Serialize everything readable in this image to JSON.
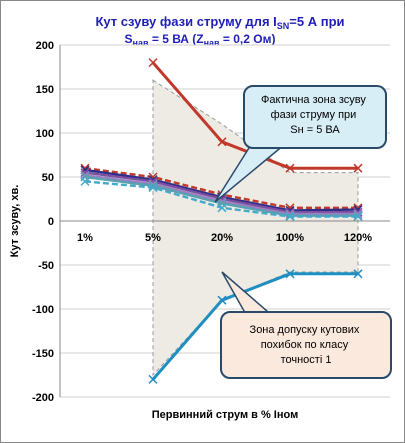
{
  "chart_data": {
    "type": "line",
    "title_line1": {
      "a": "Кут сзуву фази струму  для I",
      "sub": "SN",
      "b": "=5 А при"
    },
    "title_line2": {
      "a": "S",
      "sub1": "нав",
      "b": " = 5 ВА (Z",
      "sub2": "нав",
      "c": " = 0,2 Ом)"
    },
    "xlabel": "Первинний  струм в % Iном",
    "ylabel": "Кут зсуву, хв.",
    "categories": [
      "1%",
      "5%",
      "20%",
      "100%",
      "120%"
    ],
    "ylim": [
      -200,
      200
    ],
    "yticks": [
      -200,
      -150,
      -100,
      -50,
      0,
      50,
      100,
      150,
      200
    ],
    "grid": true,
    "series": [
      {
        "values": [
          null,
          180,
          90,
          60,
          60
        ],
        "color": "#c0392b"
      },
      {
        "values": [
          null,
          -180,
          -90,
          -60,
          -60
        ],
        "color": "#1f8fc1"
      },
      {
        "values": [
          60,
          50,
          30,
          15,
          15
        ],
        "color": "#c0392b"
      },
      {
        "values": [
          58,
          47,
          27,
          12,
          13
        ],
        "color": "#2e2e8a"
      },
      {
        "values": [
          55,
          45,
          25,
          10,
          10
        ],
        "color": "#7b4fa0"
      },
      {
        "values": [
          52,
          42,
          22,
          8,
          8
        ],
        "color": "#9b7fc0"
      },
      {
        "values": [
          50,
          40,
          20,
          6,
          6
        ],
        "color": "#5aa0b0"
      },
      {
        "values": [
          45,
          38,
          15,
          5,
          5
        ],
        "color": "#44aacc"
      }
    ],
    "zone": {
      "x_from": "5%",
      "upper": [
        160,
        110,
        55,
        55
      ],
      "lower": [
        -175,
        -90,
        -58,
        -58
      ]
    },
    "callout_upper": "Фактична зона зсуву фази струму при Sн = 5 ВА",
    "callout_lower": "Зона допуску кутових похибок  по класу точності 1"
  }
}
